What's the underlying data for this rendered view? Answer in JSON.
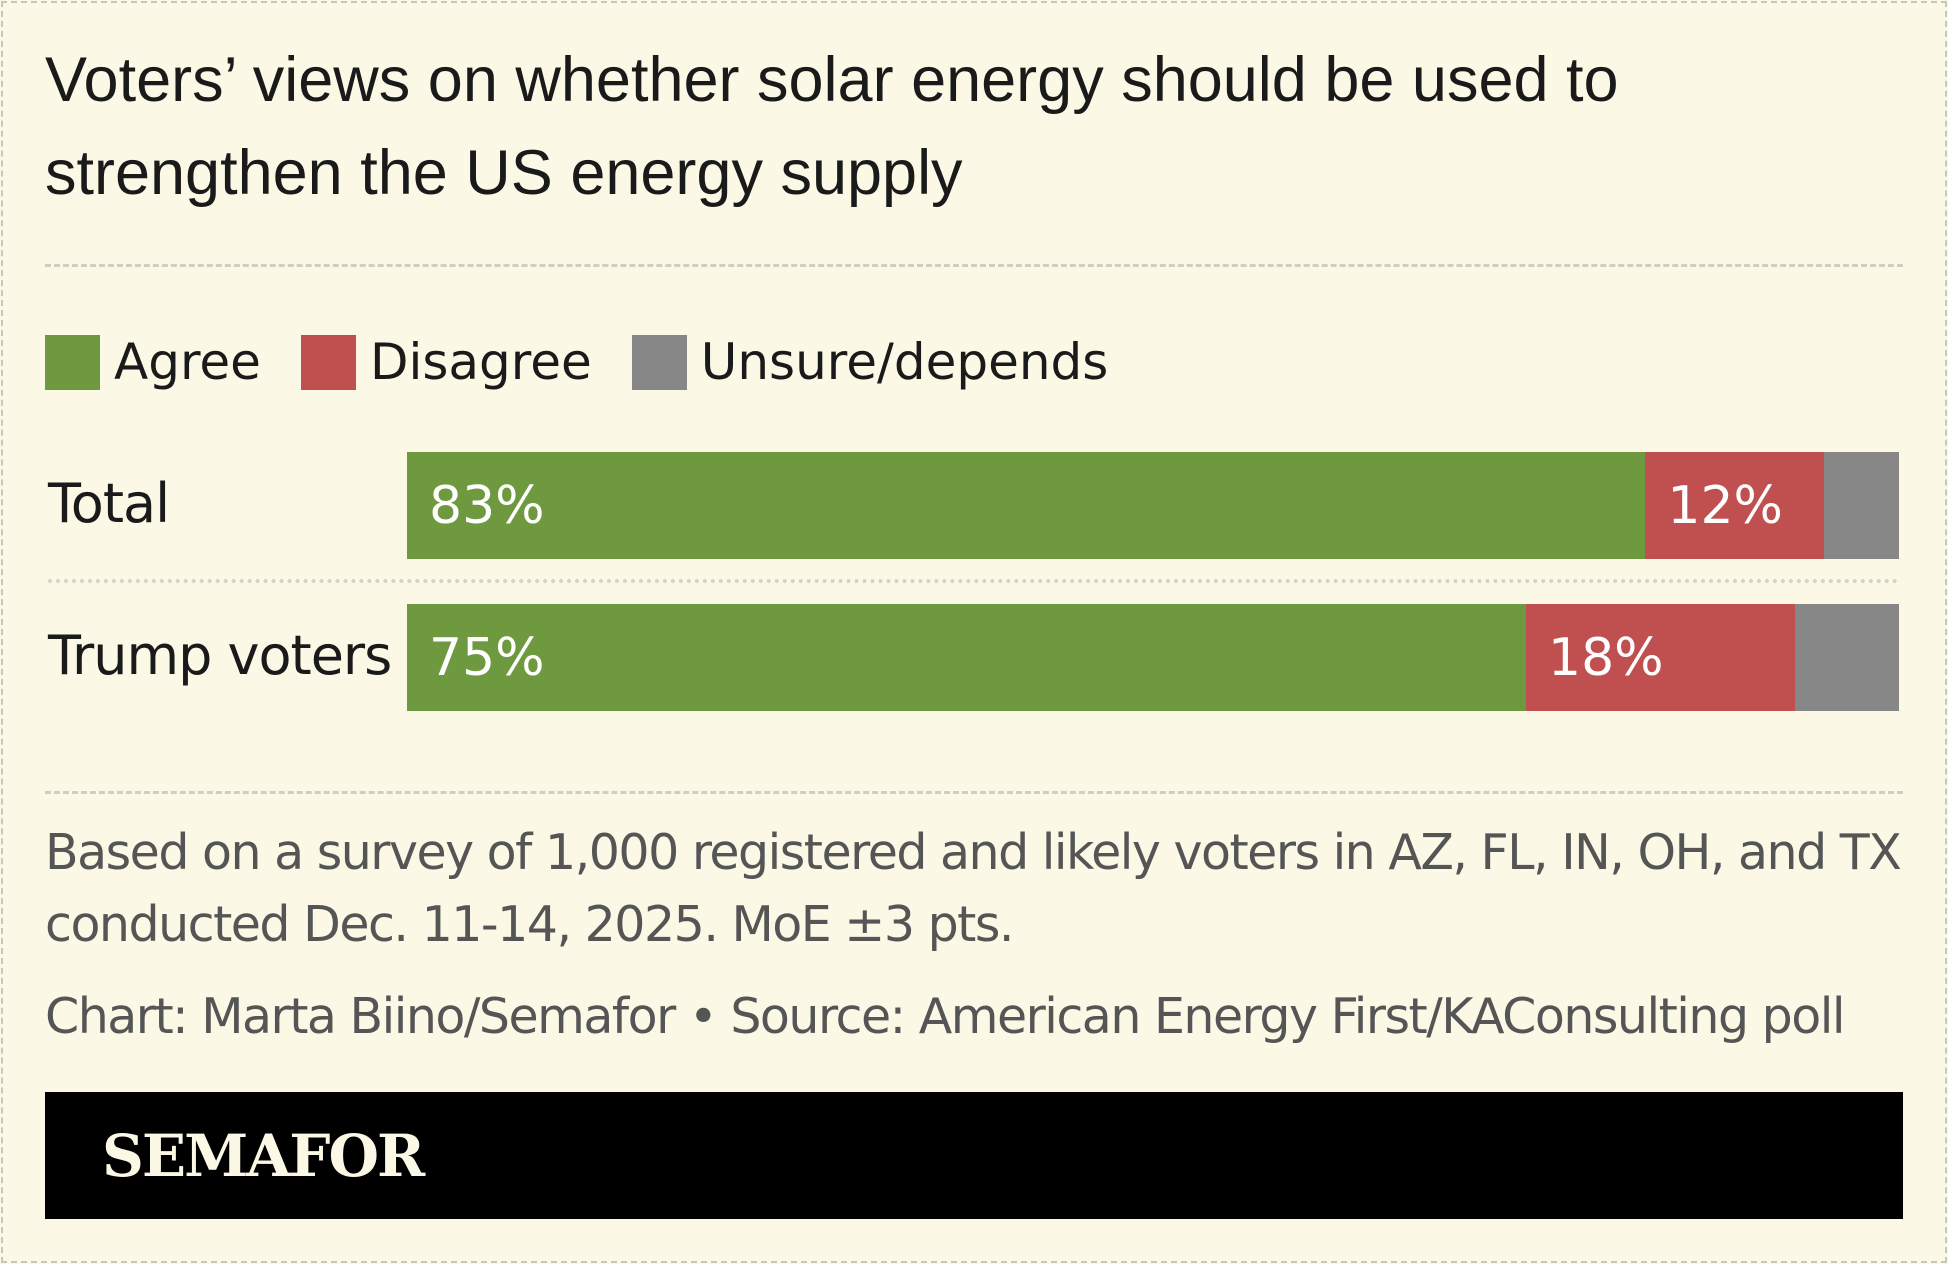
{
  "chart_data": {
    "type": "bar",
    "orientation": "horizontal",
    "stacked": true,
    "title": "Voters’ views on whether solar energy should be used to strengthen the US energy supply",
    "categories": [
      "Total",
      "Trump voters"
    ],
    "series": [
      {
        "name": "Agree",
        "color": "#6f993e",
        "values": [
          83,
          75
        ],
        "labels": [
          "83%",
          "75%"
        ]
      },
      {
        "name": "Disagree",
        "color": "#c05050",
        "values": [
          12,
          18
        ],
        "labels": [
          "12%",
          "18%"
        ]
      },
      {
        "name": "Unsure/depends",
        "color": "#878787",
        "values": [
          5,
          7
        ],
        "labels": [
          "",
          ""
        ]
      }
    ],
    "xlim": [
      0,
      100
    ],
    "legend": "top-left",
    "grid": false
  },
  "notes": {
    "line1": "Based on a survey of 1,000 registered and likely voters in AZ, FL, IN, OH, and TX",
    "line2": "conducted Dec. 11-14, 2025. MoE ±3 pts.",
    "credit": "Chart: Marta Biino/Semafor • Source: American Energy First/KAConsulting poll"
  },
  "brand": {
    "logo": "SEMAFOR"
  }
}
